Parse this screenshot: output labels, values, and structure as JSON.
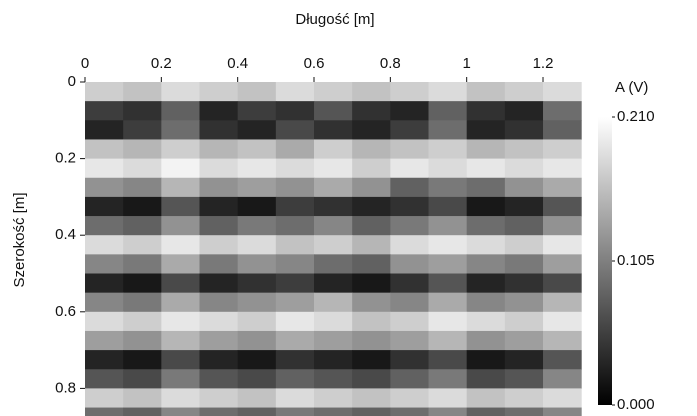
{
  "chart_data": {
    "type": "heatmap",
    "xlabel": "Długość [m]",
    "ylabel": "Szerokość [m]",
    "colorbar_label": "A (V)",
    "x": [
      0.05,
      0.15,
      0.25,
      0.35,
      0.45,
      0.55,
      0.65,
      0.75,
      0.85,
      0.95,
      1.05,
      1.15,
      1.25
    ],
    "y": [
      0.025,
      0.075,
      0.125,
      0.175,
      0.225,
      0.275,
      0.325,
      0.375,
      0.425,
      0.475,
      0.525,
      0.575,
      0.625,
      0.675,
      0.725,
      0.775,
      0.825,
      0.875
    ],
    "z": [
      [
        0.17,
        0.16,
        0.18,
        0.17,
        0.16,
        0.18,
        0.17,
        0.16,
        0.17,
        0.18,
        0.16,
        0.17,
        0.18
      ],
      [
        0.05,
        0.04,
        0.08,
        0.03,
        0.05,
        0.04,
        0.07,
        0.04,
        0.03,
        0.08,
        0.04,
        0.03,
        0.09
      ],
      [
        0.03,
        0.05,
        0.09,
        0.04,
        0.03,
        0.06,
        0.04,
        0.03,
        0.05,
        0.09,
        0.03,
        0.04,
        0.08
      ],
      [
        0.16,
        0.15,
        0.17,
        0.15,
        0.16,
        0.14,
        0.17,
        0.15,
        0.16,
        0.17,
        0.15,
        0.16,
        0.17
      ],
      [
        0.19,
        0.18,
        0.2,
        0.18,
        0.19,
        0.18,
        0.19,
        0.17,
        0.19,
        0.18,
        0.19,
        0.18,
        0.19
      ],
      [
        0.12,
        0.11,
        0.15,
        0.12,
        0.13,
        0.12,
        0.14,
        0.12,
        0.08,
        0.1,
        0.09,
        0.12,
        0.14
      ],
      [
        0.03,
        0.02,
        0.07,
        0.03,
        0.02,
        0.05,
        0.04,
        0.03,
        0.04,
        0.06,
        0.02,
        0.03,
        0.07
      ],
      [
        0.09,
        0.08,
        0.12,
        0.08,
        0.1,
        0.09,
        0.11,
        0.08,
        0.1,
        0.12,
        0.09,
        0.08,
        0.12
      ],
      [
        0.18,
        0.17,
        0.19,
        0.17,
        0.18,
        0.16,
        0.17,
        0.15,
        0.18,
        0.19,
        0.18,
        0.17,
        0.19
      ],
      [
        0.11,
        0.1,
        0.14,
        0.1,
        0.12,
        0.11,
        0.09,
        0.08,
        0.12,
        0.13,
        0.11,
        0.1,
        0.13
      ],
      [
        0.03,
        0.02,
        0.06,
        0.03,
        0.04,
        0.05,
        0.03,
        0.02,
        0.04,
        0.07,
        0.03,
        0.04,
        0.06
      ],
      [
        0.11,
        0.1,
        0.14,
        0.11,
        0.12,
        0.13,
        0.15,
        0.12,
        0.11,
        0.14,
        0.11,
        0.12,
        0.15
      ],
      [
        0.18,
        0.17,
        0.19,
        0.18,
        0.17,
        0.19,
        0.18,
        0.16,
        0.17,
        0.19,
        0.18,
        0.17,
        0.19
      ],
      [
        0.13,
        0.12,
        0.15,
        0.13,
        0.12,
        0.14,
        0.13,
        0.12,
        0.13,
        0.15,
        0.12,
        0.13,
        0.15
      ],
      [
        0.03,
        0.02,
        0.06,
        0.03,
        0.02,
        0.04,
        0.03,
        0.02,
        0.04,
        0.06,
        0.02,
        0.03,
        0.07
      ],
      [
        0.07,
        0.06,
        0.1,
        0.07,
        0.06,
        0.08,
        0.07,
        0.06,
        0.08,
        0.1,
        0.06,
        0.07,
        0.11
      ],
      [
        0.17,
        0.16,
        0.18,
        0.17,
        0.16,
        0.18,
        0.17,
        0.16,
        0.17,
        0.18,
        0.16,
        0.17,
        0.18
      ],
      [
        0.09,
        0.08,
        0.11,
        0.09,
        0.08,
        0.1,
        0.09,
        0.08,
        0.09,
        0.11,
        0.08,
        0.09,
        0.11
      ]
    ],
    "xlim": [
      0,
      1.31
    ],
    "ylim": [
      0,
      0.87
    ],
    "xticks": [
      0,
      0.2,
      0.4,
      0.6,
      0.8,
      1,
      1.2
    ],
    "yticks": [
      0,
      0.2,
      0.4,
      0.6,
      0.8
    ],
    "zlim": [
      0,
      0.21
    ],
    "zticks": [
      {
        "value": 0,
        "label": "0.000"
      },
      {
        "value": 0.105,
        "label": "0.105"
      },
      {
        "value": 0.21,
        "label": "0.210"
      }
    ],
    "colormap": [
      "#000000",
      "#ffffff"
    ]
  }
}
